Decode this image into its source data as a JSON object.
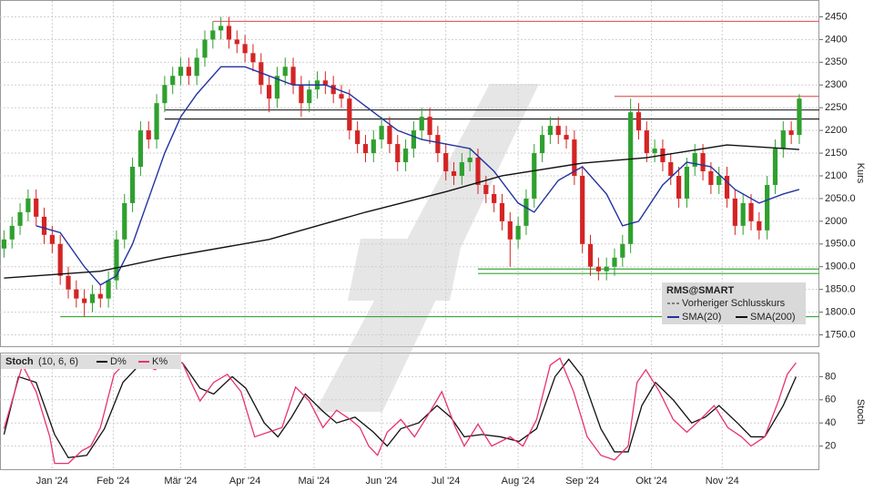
{
  "chart_data": [
    {
      "type": "candlestick",
      "title": "RMS@SMART",
      "y_label": "Kurs",
      "legend_extra": "Vorheriger Schlusskurs",
      "xlim": [
        -0.5,
        101.5
      ],
      "ylim": [
        1725,
        2485
      ],
      "grid": true,
      "yticks": [
        {
          "value": 1750,
          "label": "1750.0"
        },
        {
          "value": 1800,
          "label": "1800.0"
        },
        {
          "value": 1850,
          "label": "1850.0"
        },
        {
          "value": 1900,
          "label": "1900.0"
        },
        {
          "value": 1950,
          "label": "1950.0"
        },
        2000,
        {
          "value": 2050,
          "label": "2050.0"
        },
        2100,
        2150,
        2200,
        2250,
        2300,
        2350,
        2400,
        2450
      ],
      "up_color": "#2fa02f",
      "down_color": "#d42424",
      "open": [
        1940,
        1960,
        1990,
        2020,
        2050,
        2010,
        1970,
        1950,
        1880,
        1850,
        1830,
        1820,
        1840,
        1830,
        1870,
        1960,
        2040,
        2120,
        2200,
        2180,
        2260,
        2300,
        2320,
        2340,
        2320,
        2360,
        2400,
        2420,
        2430,
        2400,
        2390,
        2370,
        2350,
        2300,
        2270,
        2320,
        2340,
        2300,
        2260,
        2290,
        2310,
        2300,
        2280,
        2270,
        2200,
        2170,
        2150,
        2180,
        2210,
        2170,
        2130,
        2160,
        2200,
        2230,
        2190,
        2150,
        2110,
        2100,
        2130,
        2140,
        2080,
        2060,
        2040,
        2000,
        1960,
        1990,
        2050,
        2150,
        2190,
        2210,
        2190,
        2180,
        2100,
        1950,
        1900,
        1890,
        1900,
        1920,
        1950,
        2240,
        2200,
        2150,
        2160,
        2130,
        2100,
        2050,
        2120,
        2150,
        2110,
        2080,
        2100,
        2050,
        1990,
        2040,
        2000,
        1980,
        2080,
        2160,
        2200,
        2190
      ],
      "high": [
        1980,
        2010,
        2040,
        2070,
        2070,
        2030,
        1990,
        1970,
        1900,
        1870,
        1850,
        1860,
        1860,
        1890,
        1980,
        2060,
        2140,
        2220,
        2220,
        2280,
        2320,
        2340,
        2360,
        2360,
        2380,
        2420,
        2440,
        2450,
        2450,
        2420,
        2410,
        2390,
        2370,
        2320,
        2340,
        2360,
        2360,
        2320,
        2310,
        2330,
        2330,
        2320,
        2300,
        2290,
        2220,
        2190,
        2200,
        2230,
        2230,
        2190,
        2180,
        2220,
        2250,
        2250,
        2210,
        2170,
        2130,
        2150,
        2160,
        2160,
        2100,
        2080,
        2060,
        2020,
        2010,
        2070,
        2170,
        2210,
        2230,
        2230,
        2210,
        2200,
        2120,
        1970,
        1920,
        1920,
        1940,
        1970,
        2270,
        2260,
        2220,
        2180,
        2180,
        2150,
        2120,
        2140,
        2170,
        2170,
        2130,
        2120,
        2120,
        2070,
        2060,
        2060,
        2020,
        2100,
        2180,
        2220,
        2220,
        2280
      ],
      "low": [
        1920,
        1940,
        1970,
        2000,
        1990,
        1950,
        1930,
        1860,
        1830,
        1810,
        1790,
        1800,
        1810,
        1810,
        1850,
        1940,
        2020,
        2100,
        2160,
        2160,
        2240,
        2280,
        2300,
        2300,
        2300,
        2340,
        2380,
        2400,
        2380,
        2370,
        2350,
        2330,
        2280,
        2240,
        2250,
        2300,
        2280,
        2230,
        2240,
        2270,
        2280,
        2260,
        2250,
        2180,
        2150,
        2130,
        2130,
        2160,
        2150,
        2110,
        2110,
        2140,
        2180,
        2170,
        2130,
        2090,
        2080,
        2080,
        2110,
        2060,
        2040,
        2020,
        1980,
        1900,
        1940,
        1970,
        2030,
        2130,
        2170,
        2170,
        2160,
        2080,
        1930,
        1880,
        1870,
        1870,
        1880,
        1900,
        1930,
        2180,
        2130,
        2130,
        2110,
        2080,
        2030,
        2030,
        2100,
        2090,
        2060,
        2060,
        2030,
        1970,
        1970,
        1980,
        1960,
        1960,
        2060,
        2140,
        2170,
        2170
      ],
      "close": [
        1960,
        1990,
        2020,
        2050,
        2010,
        1970,
        1950,
        1880,
        1850,
        1830,
        1820,
        1840,
        1830,
        1870,
        1960,
        2040,
        2120,
        2200,
        2180,
        2260,
        2300,
        2320,
        2340,
        2320,
        2360,
        2400,
        2420,
        2430,
        2400,
        2390,
        2370,
        2350,
        2300,
        2270,
        2320,
        2340,
        2300,
        2260,
        2290,
        2310,
        2300,
        2280,
        2270,
        2200,
        2170,
        2150,
        2180,
        2210,
        2170,
        2130,
        2160,
        2200,
        2230,
        2190,
        2150,
        2110,
        2100,
        2130,
        2140,
        2080,
        2060,
        2040,
        2000,
        1960,
        1990,
        2050,
        2150,
        2190,
        2210,
        2190,
        2180,
        2100,
        1950,
        1900,
        1890,
        1900,
        1920,
        1950,
        2240,
        2200,
        2150,
        2160,
        2130,
        2100,
        2050,
        2120,
        2150,
        2110,
        2080,
        2100,
        2050,
        1990,
        2040,
        2000,
        1980,
        2080,
        2160,
        2200,
        2190,
        2270
      ],
      "lines": [
        {
          "name": "SMA(20)",
          "color": "#2233a0",
          "x": [
            4,
            7,
            10,
            12,
            14,
            16,
            18,
            20,
            22,
            24,
            27,
            30,
            33,
            36,
            40,
            43,
            46,
            49,
            52,
            55,
            58,
            61,
            64,
            66,
            69,
            72,
            75,
            77,
            79,
            82,
            85,
            88,
            91,
            94,
            97,
            99
          ],
          "values": [
            1990,
            1975,
            1900,
            1860,
            1880,
            1950,
            2050,
            2150,
            2230,
            2280,
            2340,
            2340,
            2320,
            2300,
            2300,
            2280,
            2240,
            2200,
            2180,
            2170,
            2160,
            2110,
            2040,
            2020,
            2090,
            2120,
            2060,
            1990,
            2000,
            2080,
            2130,
            2120,
            2070,
            2040,
            2060,
            2070
          ]
        },
        {
          "name": "SMA(200)",
          "color": "#111111",
          "x": [
            0,
            12,
            20,
            33,
            45,
            55,
            62,
            72,
            80,
            90,
            99
          ],
          "values": [
            1875,
            1890,
            1920,
            1960,
            2020,
            2065,
            2100,
            2128,
            2140,
            2168,
            2158
          ]
        }
      ],
      "levels": [
        {
          "value": 2440,
          "color": "#e06060",
          "start": 26
        },
        {
          "value": 2275,
          "color": "#e06060",
          "start": 76
        },
        {
          "value": 2245,
          "color": "#222222",
          "start": 20
        },
        {
          "value": 2225,
          "color": "#222222",
          "start": 20
        },
        {
          "value": 1895,
          "color": "#3aa53a",
          "start": 59
        },
        {
          "value": 1885,
          "color": "#3aa53a",
          "start": 59
        },
        {
          "value": 1790,
          "color": "#3aa53a",
          "start": 7
        }
      ]
    },
    {
      "type": "line",
      "title": "Stoch",
      "params": "(10, 6, 6)",
      "y_label": "Stoch",
      "xlim": [
        -0.5,
        101.5
      ],
      "ylim": [
        0,
        100
      ],
      "yticks": [
        20,
        40,
        60,
        80
      ],
      "grid": true,
      "xticks": [
        {
          "value": 6,
          "label": "Jan '24"
        },
        {
          "value": 13.6,
          "label": "Feb '24"
        },
        {
          "value": 22,
          "label": "Mär '24"
        },
        {
          "value": 30,
          "label": "Apr '24"
        },
        {
          "value": 38.6,
          "label": "Mai '24"
        },
        {
          "value": 47,
          "label": "Jun '24"
        },
        {
          "value": 55,
          "label": "Jul '24"
        },
        {
          "value": 64,
          "label": "Aug '24"
        },
        {
          "value": 72,
          "label": "Sep '24"
        },
        {
          "value": 80.6,
          "label": "Okt '24"
        },
        {
          "value": 89.4,
          "label": "Nov '24"
        }
      ],
      "series": [
        {
          "name": "D%",
          "color": "#111111",
          "x": [
            0,
            1.8,
            4,
            6.3,
            8,
            10.3,
            12.5,
            14.8,
            17.1,
            19.9,
            22.2,
            24.4,
            26.1,
            28.4,
            30.1,
            32.4,
            34.1,
            35.8,
            37.5,
            39.7,
            41.4,
            43.7,
            46,
            47.7,
            49.4,
            51.6,
            53.9,
            55.6,
            57.3,
            59.5,
            61.8,
            64.1,
            66.3,
            68.6,
            70.3,
            72,
            74.3,
            76,
            77.7,
            79.4,
            81.1,
            83.3,
            85.6,
            87.3,
            89,
            91.3,
            93,
            94.7,
            97,
            98.6
          ],
          "values": [
            30,
            80,
            75,
            30,
            10,
            12,
            35,
            75,
            92,
            92,
            92,
            70,
            65,
            80,
            70,
            40,
            28,
            45,
            65,
            50,
            40,
            45,
            32,
            20,
            35,
            40,
            55,
            45,
            28,
            30,
            28,
            24,
            35,
            80,
            95,
            80,
            35,
            15,
            15,
            55,
            75,
            60,
            40,
            45,
            55,
            40,
            28,
            28,
            55,
            80
          ]
        },
        {
          "name": "K%",
          "color": "#e8336d",
          "x": [
            0,
            2.3,
            4,
            5.7,
            6.3,
            8,
            9.7,
            10.8,
            12,
            13.7,
            15.4,
            17.6,
            18.8,
            20.5,
            22.2,
            23.3,
            24.4,
            26.1,
            27.8,
            29.5,
            31.2,
            32.9,
            34.6,
            36.3,
            38,
            39.7,
            41.4,
            43.1,
            44.3,
            45.4,
            46.5,
            47.7,
            49.4,
            51.1,
            52.8,
            54.5,
            56.2,
            57.3,
            59,
            60.7,
            63,
            64.6,
            66.3,
            68,
            69.2,
            70.9,
            72.6,
            74.3,
            76,
            77.7,
            78.8,
            79.9,
            81.6,
            83.3,
            85,
            86.7,
            88.4,
            90.1,
            91.8,
            93,
            94.7,
            96.4,
            97.5,
            98.6
          ],
          "values": [
            35,
            90,
            67,
            28,
            5,
            5,
            16,
            20,
            36,
            82,
            94,
            90,
            86,
            94,
            92,
            75,
            59,
            75,
            82,
            67,
            28,
            32,
            36,
            71,
            59,
            36,
            51,
            43,
            36,
            20,
            12,
            32,
            43,
            28,
            47,
            67,
            36,
            20,
            39,
            20,
            28,
            20,
            43,
            90,
            96,
            67,
            28,
            12,
            8,
            20,
            75,
            86,
            67,
            43,
            32,
            43,
            55,
            36,
            28,
            20,
            28,
            59,
            82,
            92
          ]
        }
      ]
    }
  ]
}
